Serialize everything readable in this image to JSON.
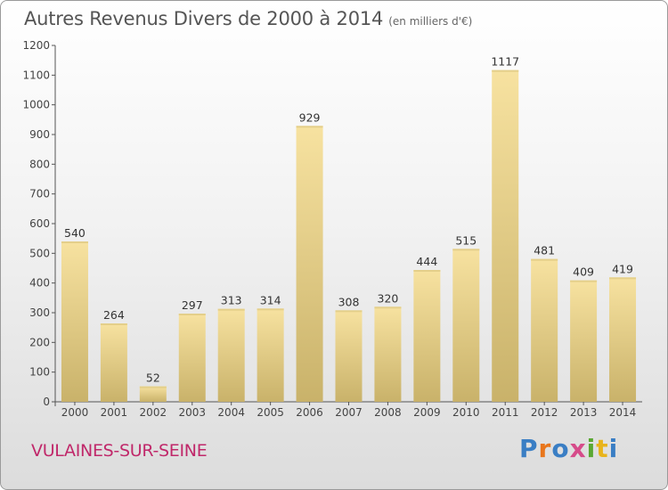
{
  "title": "Autres Revenus Divers de 2000 à 2014",
  "subtitle": "(en milliers d'€)",
  "commune": "VULAINES-SUR-SEINE",
  "logo": {
    "text": "Proxiti",
    "colors": [
      "#3a7ec4",
      "#e8761c",
      "#3a7ec4",
      "#d64b8a",
      "#5aa832",
      "#e8b41c",
      "#3a7ec4"
    ]
  },
  "chart_data": {
    "type": "bar",
    "categories": [
      "2000",
      "2001",
      "2002",
      "2003",
      "2004",
      "2005",
      "2006",
      "2007",
      "2008",
      "2009",
      "2010",
      "2011",
      "2012",
      "2013",
      "2014"
    ],
    "values": [
      540,
      264,
      52,
      297,
      313,
      314,
      929,
      308,
      320,
      444,
      515,
      1117,
      481,
      409,
      419
    ],
    "data_labels": [
      "540",
      "264",
      "52",
      "297",
      "313",
      "314",
      "929",
      "308",
      "320",
      "444",
      "515",
      "1117",
      "481",
      "409",
      "419"
    ],
    "ylim": [
      0,
      1200
    ],
    "yticks": [
      0,
      100,
      200,
      300,
      400,
      500,
      600,
      700,
      800,
      900,
      1000,
      1100,
      1200
    ],
    "grid": false,
    "bar_color_light": "#f7e2a0",
    "bar_color_dark": "#c9b26a"
  }
}
